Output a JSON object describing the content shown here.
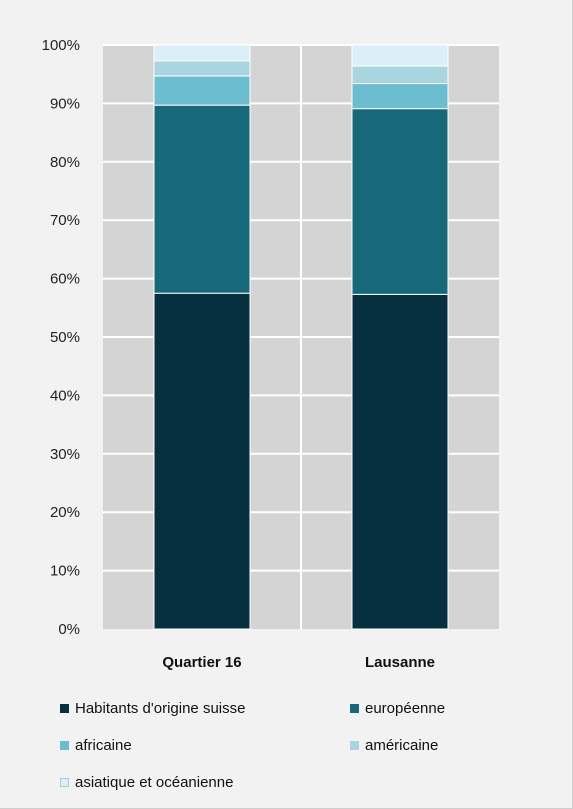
{
  "chart_data": {
    "type": "bar",
    "stacked": true,
    "orientation": "vertical",
    "categories": [
      "Quartier 16",
      "Lausanne"
    ],
    "series": [
      {
        "name": "Habitants d'origine suisse",
        "values": [
          57.5,
          57.3
        ],
        "color": "#06303f"
      },
      {
        "name": "européenne",
        "values": [
          32.2,
          31.8
        ],
        "color": "#176878"
      },
      {
        "name": "africaine",
        "values": [
          5.0,
          4.3
        ],
        "color": "#6cbdd0"
      },
      {
        "name": "américaine",
        "values": [
          2.6,
          3.0
        ],
        "color": "#a9d5e1"
      },
      {
        "name": "asiatique et océanienne",
        "values": [
          2.7,
          3.6
        ],
        "color": "#daf0f6"
      }
    ],
    "y_ticks": [
      "0%",
      "10%",
      "20%",
      "30%",
      "40%",
      "50%",
      "60%",
      "70%",
      "80%",
      "90%",
      "100%"
    ],
    "ylim": [
      0,
      100
    ],
    "grid": true,
    "legend_position": "bottom",
    "plot_background": "#d4d4d4"
  }
}
